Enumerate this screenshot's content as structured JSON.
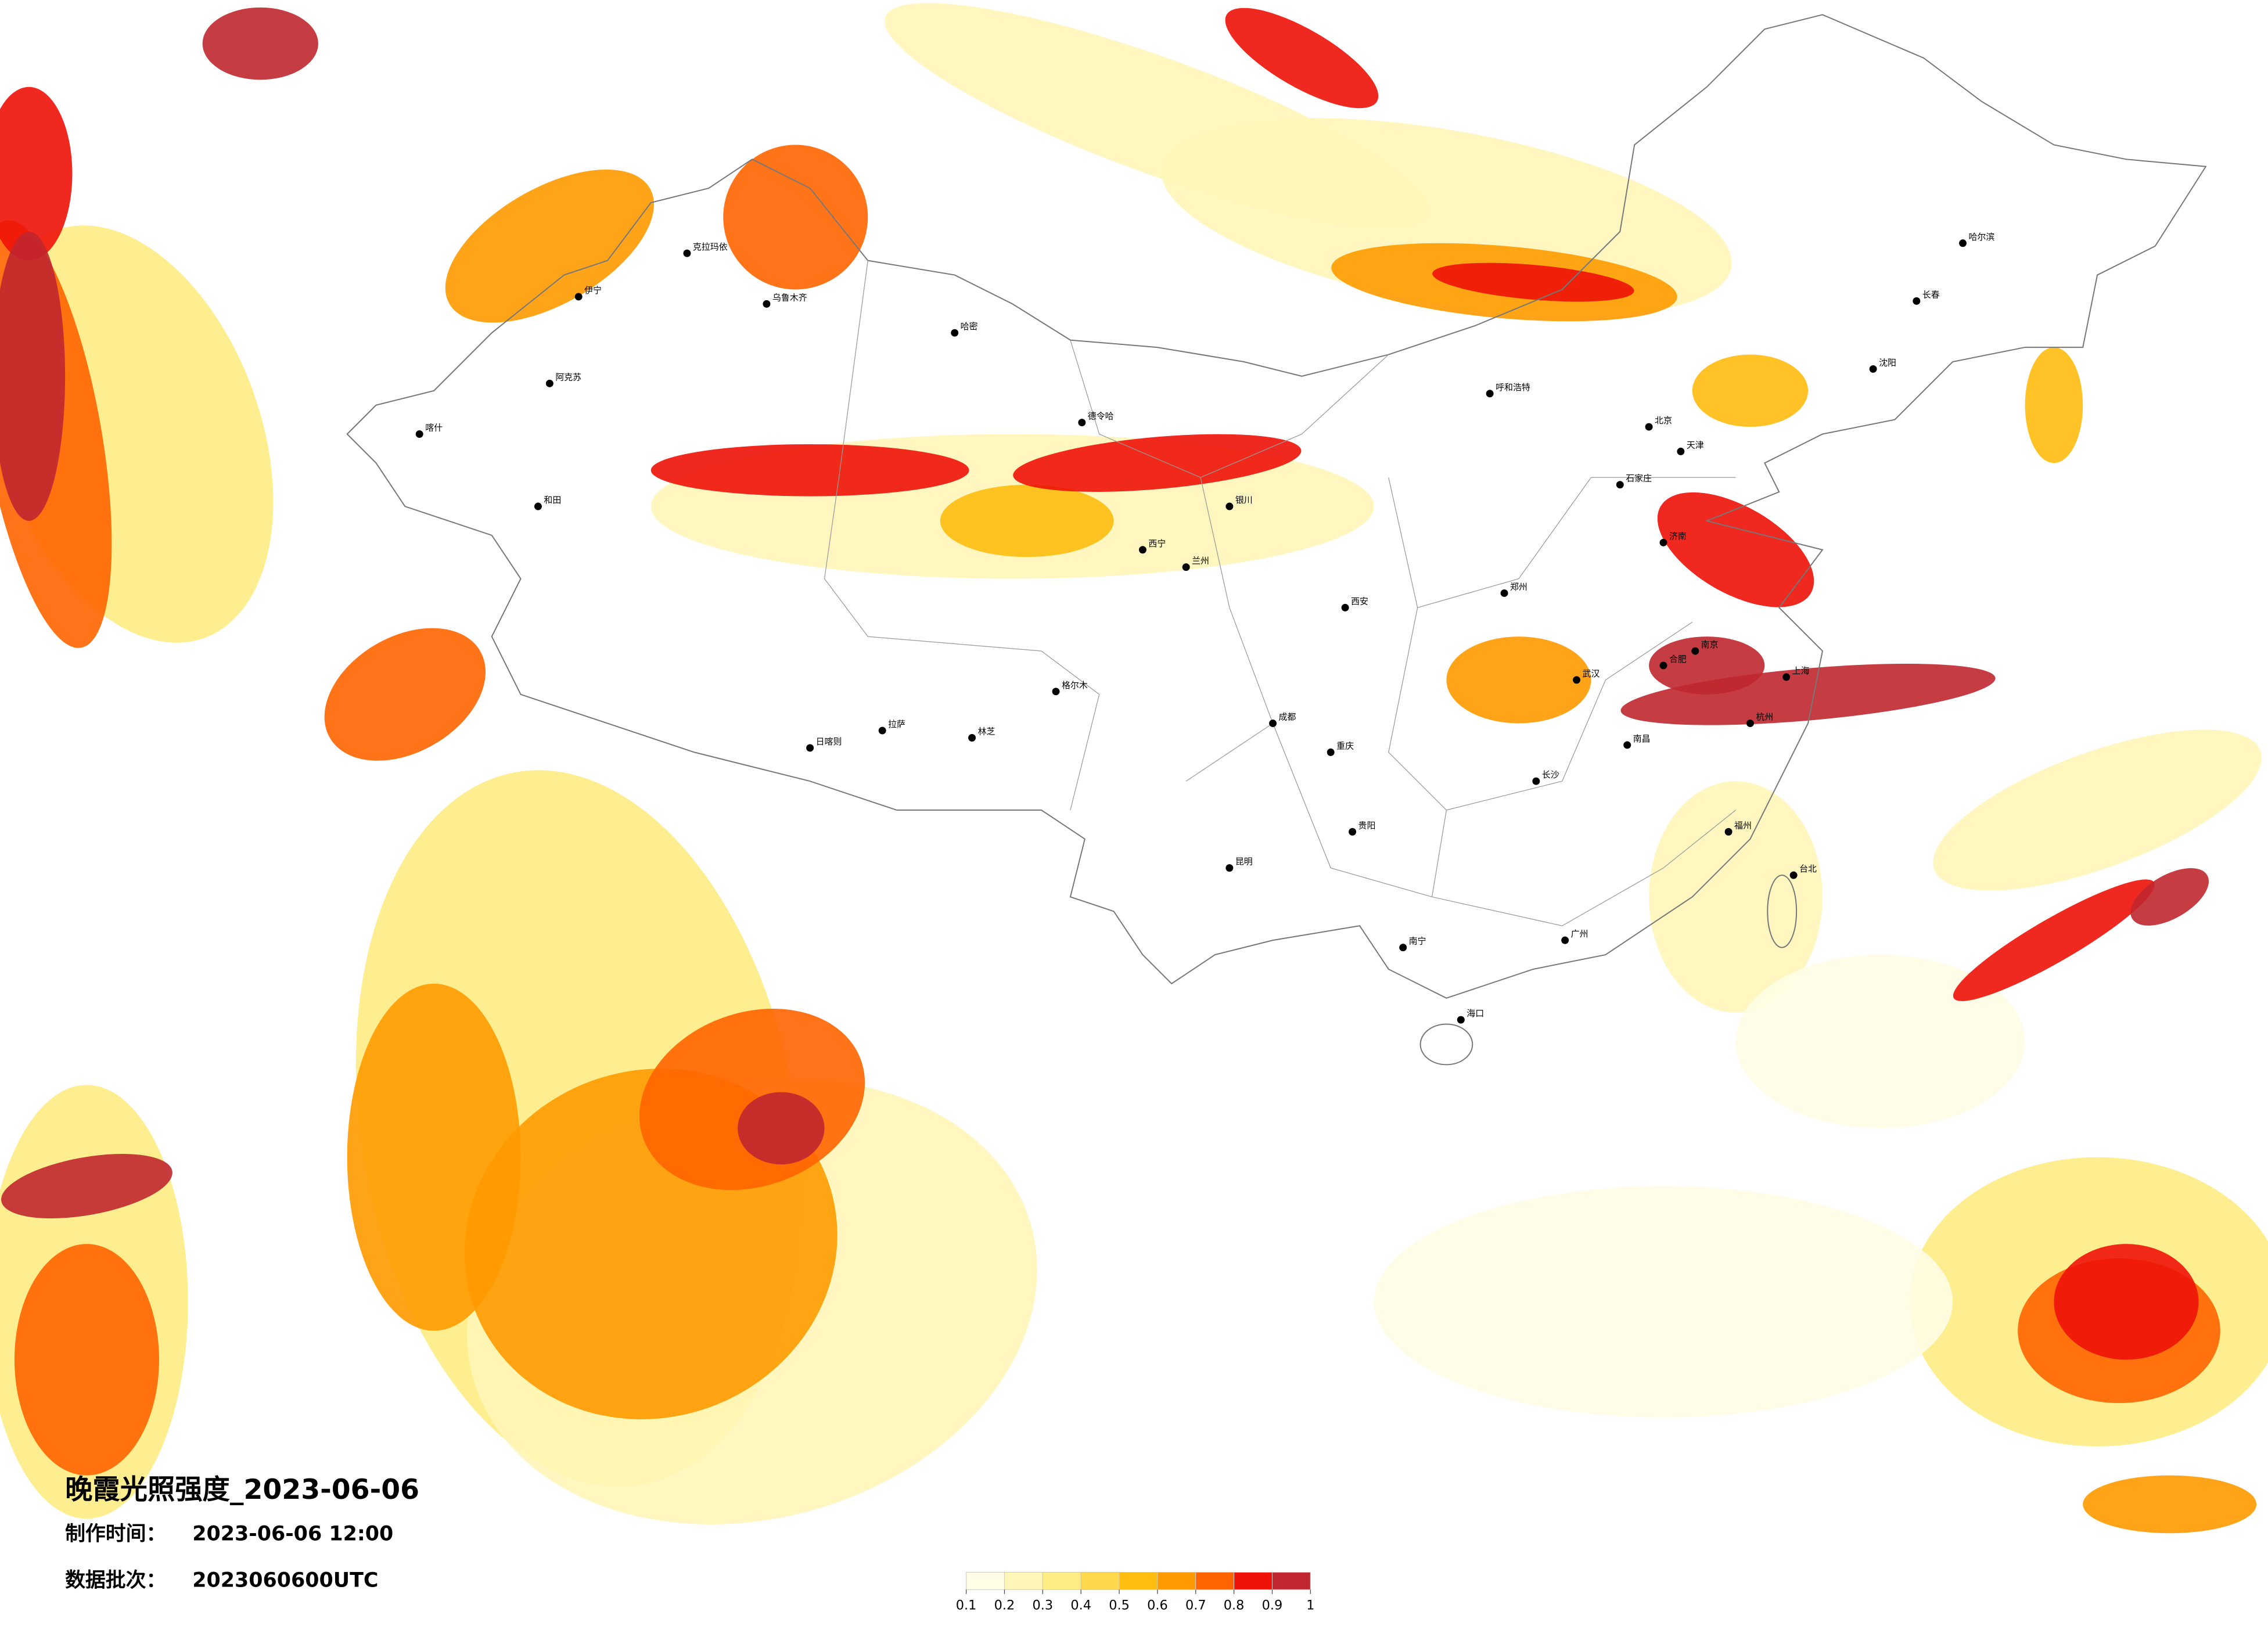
{
  "title": "晚霞光照强度_2023-06-06",
  "production_time": {
    "label": "制作时间：",
    "value": "2023-06-06 12:00"
  },
  "data_batch": {
    "label": "数据批次：",
    "value": "2023060600UTC"
  },
  "legend": {
    "ticks": [
      0.1,
      0.2,
      0.3,
      0.4,
      0.5,
      0.6,
      0.7,
      0.8,
      0.9,
      1
    ],
    "colors": [
      "#fffde6",
      "#fff6b8",
      "#ffec84",
      "#ffd84c",
      "#ffbd10",
      "#ff9a00",
      "#ff6400",
      "#ee1208",
      "#c0272f"
    ]
  },
  "cities": [
    "克拉玛依",
    "伊宁",
    "阿克苏",
    "喀什",
    "和田",
    "乌鲁木齐",
    "哈密",
    "德令哈",
    "格尔木",
    "拉萨",
    "日喀则",
    "林芝",
    "西宁",
    "兰州",
    "银川",
    "呼和浩特",
    "北京",
    "天津",
    "石家庄",
    "济南",
    "郑州",
    "西安",
    "成都",
    "重庆",
    "贵阳",
    "昆明",
    "南宁",
    "海口",
    "广州",
    "长沙",
    "武汉",
    "南昌",
    "福州",
    "杭州",
    "上海",
    "南京",
    "合肥",
    "沈阳",
    "长春",
    "哈尔滨",
    "台北"
  ]
}
